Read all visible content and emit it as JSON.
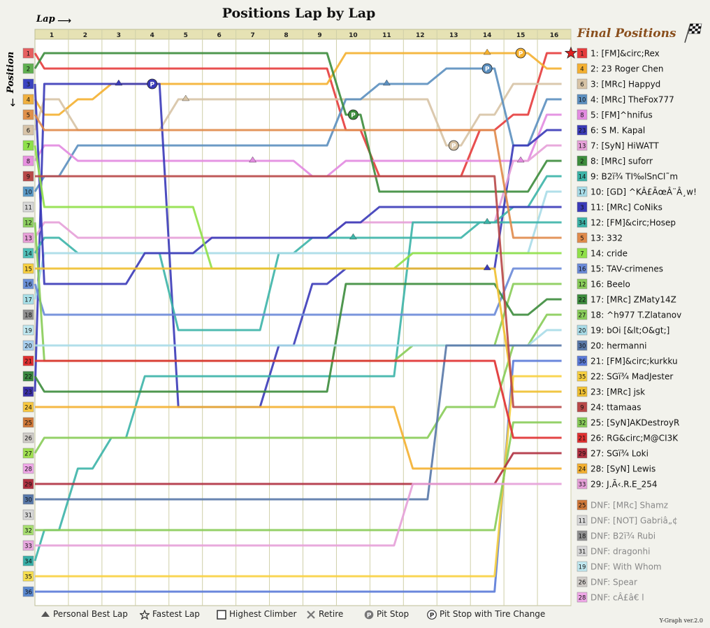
{
  "page": {
    "title": "Positions Lap by Lap",
    "lap_axis_label": "Lap",
    "position_axis_label": "Position",
    "final_title": "Final Positions",
    "version": "Y-Graph ver.2.0"
  },
  "legend": [
    {
      "name": "personal-best-lap",
      "label": "Personal Best Lap",
      "icon": "triangle-icon"
    },
    {
      "name": "fastest-lap",
      "label": "Fastest Lap",
      "icon": "star-icon"
    },
    {
      "name": "highest-climber",
      "label": "Highest Climber",
      "icon": "square-icon"
    },
    {
      "name": "retire",
      "label": "Retire",
      "icon": "cross-icon"
    },
    {
      "name": "pit-stop",
      "label": "Pit Stop",
      "icon": "pit-icon"
    },
    {
      "name": "pit-stop-tire",
      "label": "Pit Stop with Tire Change",
      "icon": "pit-tire-icon"
    }
  ],
  "chart_data": {
    "type": "line",
    "laps": [
      1,
      2,
      3,
      4,
      5,
      6,
      7,
      8,
      9,
      10,
      11,
      12,
      13,
      14,
      15,
      16
    ],
    "position_labels": [
      1,
      2,
      3,
      4,
      5,
      6,
      7,
      8,
      9,
      10,
      11,
      12,
      13,
      14,
      15,
      16,
      17,
      18,
      19,
      20,
      21,
      22,
      23,
      24,
      25,
      26,
      27,
      28,
      29,
      30,
      31,
      32,
      33,
      34,
      35,
      36
    ],
    "grid_colors": [
      "#e66060",
      "#60b050",
      "#3a42c0",
      "#f0b040",
      "#e0904a",
      "#d8c4a8",
      "#8ee04a",
      "#e890e0",
      "#b84848",
      "#5a9ac8",
      "#d8d8d8",
      "#8ed060",
      "#e8a0d8",
      "#50c0b8",
      "#f8d040",
      "#6a90d8",
      "#a8e0e8",
      "#909090",
      "#c0e8f0",
      "#a8d0f0",
      "#e03030",
      "#3a8840",
      "#3a30a8",
      "#f8c840",
      "#d07838",
      "#d0ccc8",
      "#a0e050",
      "#f0a8e8",
      "#b03040",
      "#5878a8",
      "#d8d8d8",
      "#a8e070",
      "#e8a8e0",
      "#38b0a8",
      "#f8e050",
      "#5a88d0"
    ],
    "drivers": [
      {
        "final": 1,
        "label": "1: [FM]&circ;Rex",
        "start": 1,
        "color": "#e63c3c",
        "positions": [
          2,
          2,
          2,
          2,
          2,
          2,
          2,
          2,
          2,
          6,
          9,
          9,
          9,
          6,
          5,
          1
        ],
        "marks": [
          {
            "lap": 16,
            "type": "fastest"
          }
        ]
      },
      {
        "final": 2,
        "label": "2: 23 Roger Chen",
        "start": 4,
        "color": "#f4b030",
        "positions": [
          5,
          4,
          3,
          3,
          3,
          3,
          3,
          3,
          3,
          1,
          1,
          1,
          1,
          1,
          1,
          2
        ],
        "marks": [
          {
            "lap": 14,
            "type": "best"
          },
          {
            "lap": 15,
            "type": "pit"
          }
        ]
      },
      {
        "final": 3,
        "label": "3: [MRc] Happyd",
        "start": 6,
        "color": "#d7c3a5",
        "positions": [
          4,
          6,
          6,
          6,
          4,
          4,
          4,
          4,
          4,
          4,
          4,
          4,
          7,
          5,
          3,
          3
        ],
        "marks": [
          {
            "lap": 5,
            "type": "best"
          },
          {
            "lap": 13,
            "type": "pit"
          }
        ]
      },
      {
        "final": 4,
        "label": "4: [MRc] TheFox777",
        "start": 10,
        "color": "#5b8fbf",
        "positions": [
          9,
          7,
          7,
          7,
          7,
          7,
          7,
          7,
          7,
          4,
          3,
          3,
          2,
          2,
          7,
          4
        ],
        "marks": [
          {
            "lap": 11,
            "type": "best"
          },
          {
            "lap": 14,
            "type": "pit"
          }
        ]
      },
      {
        "final": 5,
        "label": "5: [FM]^hnifus",
        "start": 8,
        "color": "#e28ae0",
        "positions": [
          7,
          8,
          8,
          8,
          8,
          8,
          8,
          8,
          9,
          8,
          8,
          8,
          8,
          8,
          8,
          5
        ],
        "marks": [
          {
            "lap": 7,
            "type": "best"
          },
          {
            "lap": 15,
            "type": "best"
          }
        ]
      },
      {
        "final": 6,
        "label": "6: S M. Kapal",
        "start": 23,
        "color": "#3a3ab8",
        "positions": [
          3,
          3,
          3,
          3,
          24,
          24,
          24,
          20,
          16,
          15,
          15,
          15,
          15,
          15,
          7,
          6
        ],
        "marks": [
          {
            "lap": 3,
            "type": "best"
          },
          {
            "lap": 4,
            "type": "pit"
          },
          {
            "lap": 14,
            "type": "best"
          }
        ]
      },
      {
        "final": 7,
        "label": "7: [SyN] HiWATT",
        "start": 13,
        "color": "#e6a0d8",
        "positions": [
          12,
          13,
          13,
          13,
          13,
          13,
          13,
          13,
          13,
          12,
          12,
          12,
          12,
          12,
          8,
          7
        ]
      },
      {
        "final": 8,
        "label": "8: [MRc] suforr",
        "start": 2,
        "color": "#3c8c3c",
        "positions": [
          1,
          1,
          1,
          1,
          1,
          1,
          1,
          1,
          1,
          5,
          10,
          10,
          10,
          10,
          10,
          8
        ],
        "marks": [
          {
            "lap": 10,
            "type": "pit"
          }
        ]
      },
      {
        "final": 9,
        "label": "9: B2ï¾ TI‰lSnCl˜m",
        "start": 14,
        "color": "#3cb4a8",
        "positions": [
          13,
          14,
          14,
          14,
          19,
          19,
          19,
          14,
          13,
          13,
          13,
          13,
          13,
          12,
          11,
          9
        ],
        "marks": [
          {
            "lap": 10,
            "type": "best"
          },
          {
            "lap": 14,
            "type": "best"
          }
        ]
      },
      {
        "final": 10,
        "label": "10: [GD] ^KÂ£ÃœÂ¨Â¸w!",
        "start": 17,
        "color": "#a8dce8",
        "positions": [
          14,
          14,
          14,
          14,
          14,
          14,
          14,
          14,
          14,
          14,
          14,
          14,
          14,
          14,
          14,
          10
        ]
      },
      {
        "final": 11,
        "label": "11: [MRc] CoNiks",
        "start": 3,
        "color": "#3a3ab8",
        "positions": [
          16,
          16,
          16,
          14,
          14,
          13,
          13,
          13,
          13,
          12,
          11,
          11,
          11,
          11,
          11,
          11
        ]
      },
      {
        "final": 12,
        "label": "12: [FM]&circ;Hosep",
        "start": 34,
        "color": "#3cb4a8",
        "positions": [
          32,
          28,
          26,
          22,
          22,
          22,
          22,
          22,
          22,
          22,
          22,
          12,
          12,
          12,
          12,
          12
        ]
      },
      {
        "final": 13,
        "label": "13: 332",
        "start": 5,
        "color": "#e08a4a",
        "positions": [
          6,
          6,
          6,
          6,
          6,
          6,
          6,
          6,
          6,
          6,
          6,
          6,
          6,
          6,
          13,
          13
        ]
      },
      {
        "final": 14,
        "label": "14: cride",
        "start": 7,
        "color": "#90e048",
        "positions": [
          11,
          11,
          11,
          11,
          11,
          15,
          15,
          15,
          15,
          15,
          15,
          14,
          14,
          14,
          14,
          14
        ]
      },
      {
        "final": 15,
        "label": "15: TAV-crimenes",
        "start": 16,
        "color": "#6a8ad8",
        "positions": [
          18,
          18,
          18,
          18,
          18,
          18,
          18,
          18,
          18,
          18,
          18,
          18,
          18,
          18,
          15,
          15
        ]
      },
      {
        "final": 16,
        "label": "16: Beelo",
        "start": 12,
        "color": "#88cc58",
        "positions": [
          21,
          21,
          21,
          21,
          21,
          21,
          21,
          21,
          21,
          21,
          21,
          20,
          20,
          20,
          16,
          16
        ]
      },
      {
        "final": 17,
        "label": "17: [MRc] ZMaty14Z",
        "start": 22,
        "color": "#3c8c3c",
        "positions": [
          23,
          23,
          23,
          23,
          23,
          23,
          23,
          23,
          23,
          16,
          16,
          16,
          16,
          16,
          18,
          17
        ]
      },
      {
        "final": 18,
        "label": "18: ^h977 T.Zlatanov",
        "start": 27,
        "color": "#88cc58",
        "positions": [
          26,
          26,
          26,
          26,
          26,
          26,
          26,
          26,
          26,
          26,
          26,
          26,
          24,
          24,
          20,
          18
        ]
      },
      {
        "final": 19,
        "label": "19: bOi [&lt;O&gt;]",
        "start": 20,
        "color": "#a8dce8",
        "positions": [
          20,
          20,
          20,
          20,
          20,
          20,
          20,
          20,
          20,
          20,
          20,
          20,
          20,
          20,
          20,
          19
        ]
      },
      {
        "final": 20,
        "label": "20: hermanni",
        "start": 30,
        "color": "#5878a8",
        "positions": [
          30,
          30,
          30,
          30,
          30,
          30,
          30,
          30,
          30,
          30,
          30,
          30,
          20,
          20,
          20,
          20
        ]
      },
      {
        "final": 21,
        "label": "21: [FM]&circ;kurkku",
        "start": 36,
        "color": "#5a7ad8",
        "positions": [
          36,
          36,
          36,
          36,
          36,
          36,
          36,
          36,
          36,
          36,
          36,
          36,
          36,
          36,
          21,
          21
        ]
      },
      {
        "final": 22,
        "label": "22: SGï¾ MadJester",
        "start": 35,
        "color": "#f8d040",
        "positions": [
          35,
          35,
          35,
          35,
          35,
          35,
          35,
          35,
          35,
          35,
          35,
          35,
          35,
          35,
          22,
          22
        ]
      },
      {
        "final": 23,
        "label": "23: [MRc] jsk",
        "start": 15,
        "color": "#f0c030",
        "positions": [
          15,
          15,
          15,
          15,
          15,
          15,
          15,
          15,
          15,
          15,
          15,
          15,
          15,
          15,
          23,
          23
        ]
      },
      {
        "final": 24,
        "label": "24: ttamaas",
        "start": 9,
        "color": "#b84848",
        "positions": [
          9,
          9,
          9,
          9,
          9,
          9,
          9,
          9,
          9,
          9,
          9,
          9,
          9,
          9,
          24,
          24
        ]
      },
      {
        "final": 25,
        "label": "25: [SyN]AKDestroyR",
        "start": 32,
        "color": "#88cc58",
        "positions": [
          32,
          32,
          32,
          32,
          32,
          32,
          32,
          32,
          32,
          32,
          32,
          32,
          32,
          32,
          25,
          25
        ]
      },
      {
        "final": 26,
        "label": "26: RG&circ;M@CI3K",
        "start": 21,
        "color": "#e03030",
        "positions": [
          21,
          21,
          21,
          21,
          21,
          21,
          21,
          21,
          21,
          21,
          21,
          21,
          21,
          21,
          26,
          26
        ]
      },
      {
        "final": 27,
        "label": "27: SGï¾ Loki",
        "start": 29,
        "color": "#b03040",
        "positions": [
          29,
          29,
          29,
          29,
          29,
          29,
          29,
          29,
          29,
          29,
          29,
          29,
          29,
          29,
          27,
          27
        ]
      },
      {
        "final": 28,
        "label": "28: [SyN] Lewis",
        "start": 24,
        "color": "#f4b030",
        "positions": [
          24,
          24,
          24,
          24,
          24,
          24,
          24,
          24,
          24,
          24,
          24,
          28,
          28,
          28,
          28,
          28
        ]
      },
      {
        "final": 29,
        "label": "29: J.Ã‹.R.E_254",
        "start": 33,
        "color": "#e6a0d8",
        "positions": [
          33,
          33,
          33,
          33,
          33,
          33,
          33,
          33,
          33,
          33,
          33,
          29,
          29,
          29,
          29,
          29
        ]
      }
    ],
    "dnf": [
      {
        "label": "DNF: [MRc] Shamz",
        "start": 25,
        "color": "#d07838"
      },
      {
        "label": "DNF: [NOT] Gabriâ„¢",
        "start": 11,
        "color": "#d8d8d8"
      },
      {
        "label": "DNF: B2ï¾ Rubi",
        "start": 18,
        "color": "#909090"
      },
      {
        "label": "DNF: dragonhi",
        "start": 31,
        "color": "#d8d8d8"
      },
      {
        "label": "DNF: With Whom",
        "start": 19,
        "color": "#c0e8f0"
      },
      {
        "label": "DNF: Spear",
        "start": 26,
        "color": "#d0ccc8"
      },
      {
        "label": "DNF: cÂ£â€ l",
        "start": 28,
        "color": "#f0a8e8"
      }
    ]
  }
}
